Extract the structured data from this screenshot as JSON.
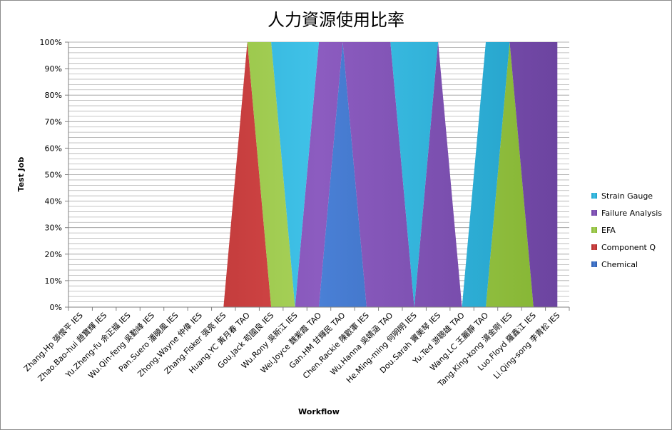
{
  "chart_data": {
    "type": "area",
    "stacking": "percent",
    "title": "人力資源使用比率",
    "xlabel": "Workflow",
    "ylabel": "Test Job",
    "ylim": [
      0,
      100
    ],
    "yticks": [
      "0%",
      "10%",
      "20%",
      "30%",
      "40%",
      "50%",
      "60%",
      "70%",
      "80%",
      "90%",
      "100%"
    ],
    "grid": "horizontal",
    "legend_position": "right",
    "categories": [
      "Zhang.Hp 張懷平 IES",
      "Zhao.Bao-hui 趙寶輝 IES",
      "Yu.Zheng-fu 余正福 IES",
      "Wu.Qin-feng 吳勤峰 IES",
      "Pan.Suero 潘曉風 IES",
      "Zhong.Wayne 仲偉 IES",
      "Zhang.Fisker 張亮 IES",
      "Huang.YC 黃月春 TAO",
      "Gou.Jack 苟國良 IES",
      "Wu.Rony 吳新江 IES",
      "Wei.Joyce 魏紫霞 TAO",
      "Gan.HM 甘輝民 TAO",
      "Chen.Rackie 陳歡軍 IES",
      "Wu.Hanna 吳婧涵 TAO",
      "He.Ming-ming 何明明 IES",
      "Dou.Sarah 竇美琴 IES",
      "Yu.Ted 游聰雄 TAO",
      "Wang.LC 王麗靜 TAO",
      "Tang.King-kong 湯金剛 IES",
      "Luo.Floyd 羅鑫江 IES",
      "Li.Qing-song 李青松 IES"
    ],
    "series": [
      {
        "name": "Chemical",
        "color": "#3c6fc4",
        "values": [
          0,
          0,
          0,
          0,
          0,
          0,
          0,
          0,
          0,
          0,
          0,
          1,
          0,
          0,
          0,
          0,
          0,
          0,
          0,
          0,
          0
        ]
      },
      {
        "name": "Component Q",
        "color": "#c43c3c",
        "values": [
          0,
          0,
          0,
          0,
          0,
          0,
          0,
          1,
          0,
          0,
          0,
          0,
          0,
          0,
          0,
          0,
          0,
          0,
          0,
          0,
          0
        ]
      },
      {
        "name": "EFA",
        "color": "#9cc94a",
        "values": [
          0,
          0,
          0,
          0,
          0,
          0,
          0,
          0,
          1,
          0,
          0,
          0,
          0,
          0,
          0,
          0,
          0,
          0,
          1,
          0,
          0
        ]
      },
      {
        "name": "Failure Analysis",
        "color": "#8254b4",
        "values": [
          0,
          0,
          0,
          0,
          0,
          0,
          0,
          0,
          0,
          0,
          1,
          0,
          1,
          1,
          0,
          1,
          0,
          0,
          0,
          1,
          1
        ]
      },
      {
        "name": "Strain Gauge",
        "color": "#33b6dc",
        "values": [
          0,
          0,
          0,
          0,
          0,
          0,
          0,
          0,
          0,
          1,
          0,
          0,
          0,
          0,
          1,
          0,
          0,
          1,
          0,
          0,
          0
        ]
      }
    ],
    "legend_order": [
      "Strain Gauge",
      "Failure Analysis",
      "EFA",
      "Component Q",
      "Chemical"
    ]
  }
}
